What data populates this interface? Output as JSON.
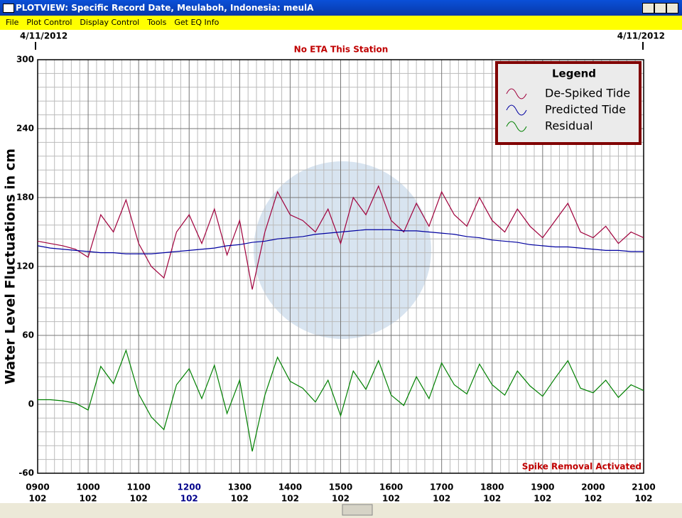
{
  "window": {
    "title": "PLOTVIEW: Specific Record Date, Meulaboh, Indonesia: meulA",
    "menu": [
      "File",
      "Plot Control",
      "Display Control",
      "Tools",
      "Get EQ Info"
    ]
  },
  "chart_data": {
    "type": "line",
    "date_left": "4/11/2012",
    "date_right": "4/11/2012",
    "title": "No ETA This Station",
    "ylabel": "Water Level Fluctuations in cm",
    "annotation": "Spike Removal Activated",
    "legend_title": "Legend",
    "legend": "top-right",
    "grid": true,
    "ylim": [
      -60,
      300
    ],
    "yticks": [
      -60,
      0,
      60,
      120,
      180,
      240,
      300
    ],
    "xlim": [
      9,
      21
    ],
    "xticks": [
      {
        "value": 9,
        "label": "0900",
        "sublabel": "102"
      },
      {
        "value": 10,
        "label": "1000",
        "sublabel": "102"
      },
      {
        "value": 11,
        "label": "1100",
        "sublabel": "102"
      },
      {
        "value": 12,
        "label": "1200",
        "sublabel": "102",
        "color": "#00008b"
      },
      {
        "value": 13,
        "label": "1300",
        "sublabel": "102"
      },
      {
        "value": 14,
        "label": "1400",
        "sublabel": "102"
      },
      {
        "value": 15,
        "label": "1500",
        "sublabel": "102"
      },
      {
        "value": 16,
        "label": "1600",
        "sublabel": "102"
      },
      {
        "value": 17,
        "label": "1700",
        "sublabel": "102"
      },
      {
        "value": 18,
        "label": "1800",
        "sublabel": "102"
      },
      {
        "value": 19,
        "label": "1900",
        "sublabel": "102"
      },
      {
        "value": 20,
        "label": "2000",
        "sublabel": "102"
      },
      {
        "value": 21,
        "label": "2100",
        "sublabel": "102"
      }
    ],
    "x": [
      9,
      9.25,
      9.5,
      9.75,
      10,
      10.25,
      10.5,
      10.75,
      11,
      11.25,
      11.5,
      11.75,
      12,
      12.25,
      12.5,
      12.75,
      13,
      13.25,
      13.5,
      13.75,
      14,
      14.25,
      14.5,
      14.75,
      15,
      15.25,
      15.5,
      15.75,
      16,
      16.25,
      16.5,
      16.75,
      17,
      17.25,
      17.5,
      17.75,
      18,
      18.25,
      18.5,
      18.75,
      19,
      19.25,
      19.5,
      19.75,
      20,
      20.25,
      20.5,
      20.75,
      21
    ],
    "series": [
      {
        "name": "De-Spiked Tide",
        "color": "#a0003c",
        "values": [
          142,
          140,
          138,
          135,
          128,
          165,
          150,
          178,
          140,
          120,
          110,
          150,
          165,
          140,
          170,
          130,
          160,
          100,
          150,
          185,
          165,
          160,
          150,
          170,
          140,
          180,
          165,
          190,
          160,
          150,
          175,
          155,
          185,
          165,
          155,
          180,
          160,
          150,
          170,
          155,
          145,
          160,
          175,
          150,
          145,
          155,
          140,
          150,
          145
        ]
      },
      {
        "name": "Predicted Tide",
        "color": "#0000a0",
        "values": [
          138,
          136,
          135,
          134,
          133,
          132,
          132,
          131,
          131,
          131,
          132,
          133,
          134,
          135,
          136,
          138,
          139,
          141,
          142,
          144,
          145,
          146,
          148,
          149,
          150,
          151,
          152,
          152,
          152,
          151,
          151,
          150,
          149,
          148,
          146,
          145,
          143,
          142,
          141,
          139,
          138,
          137,
          137,
          136,
          135,
          134,
          134,
          133,
          133
        ]
      },
      {
        "name": "Residual",
        "color": "#008000",
        "values": [
          4,
          4,
          3,
          1,
          -5,
          33,
          18,
          47,
          9,
          -11,
          -22,
          17,
          31,
          5,
          34,
          -8,
          21,
          -41,
          8,
          41,
          20,
          14,
          2,
          21,
          -10,
          29,
          13,
          38,
          8,
          -1,
          24,
          5,
          36,
          17,
          9,
          35,
          17,
          8,
          29,
          16,
          7,
          23,
          38,
          14,
          10,
          21,
          6,
          17,
          12
        ]
      }
    ]
  }
}
